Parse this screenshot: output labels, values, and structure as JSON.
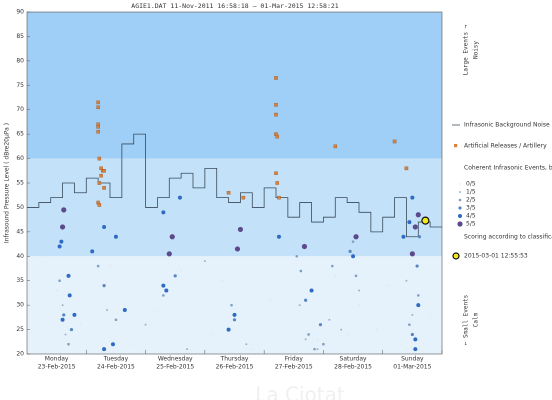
{
  "chart_data": {
    "type": "scatter",
    "title": "AGIE1.DAT   11-Nov-2011 16:58:18   –   01-Mar-2015 12:58:21",
    "y_label": "Infrasound Pressure Level   ( dBre20µPa )",
    "categories": [
      "Monday",
      "Tuesday",
      "Wednesday",
      "Thursday",
      "Friday",
      "Saturday",
      "Sunday"
    ],
    "dates": [
      "23-Feb-2015",
      "24-Feb-2015",
      "25-Feb-2015",
      "26-Feb-2015",
      "27-Feb-2015",
      "28-Feb-2015",
      "01-Mar-2015"
    ],
    "xlim": [
      0,
      7
    ],
    "ylim": [
      20,
      90
    ],
    "yticks": [
      20,
      25,
      30,
      35,
      40,
      45,
      50,
      55,
      60,
      65,
      70,
      75,
      80,
      85,
      90
    ],
    "zones": [
      {
        "from": 60,
        "to": 90,
        "color": "#9fcff6"
      },
      {
        "from": 40,
        "to": 60,
        "color": "#c3e2f9"
      },
      {
        "from": 20,
        "to": 40,
        "color": "#e5f1fb"
      }
    ],
    "zone_labels": [
      "Noisy",
      "Large Events →",
      "← Small Events",
      "Calm"
    ],
    "noise": {
      "name": "Infrasonic Background Noise",
      "color": "#3a4a5a",
      "x": [
        0,
        0.2,
        0.4,
        0.6,
        0.8,
        1.0,
        1.2,
        1.4,
        1.6,
        1.8,
        2.0,
        2.2,
        2.4,
        2.6,
        2.8,
        3.0,
        3.2,
        3.4,
        3.6,
        3.8,
        4.0,
        4.2,
        4.4,
        4.6,
        4.8,
        5.0,
        5.2,
        5.4,
        5.6,
        5.8,
        6.0,
        6.2,
        6.4,
        6.6,
        6.8
      ],
      "values": [
        50,
        51,
        52,
        55,
        53,
        56,
        55,
        52,
        63,
        65,
        50,
        52,
        56,
        57,
        54,
        58,
        52,
        51,
        53,
        50,
        54,
        52,
        48,
        51,
        47,
        48,
        52,
        51,
        49,
        45,
        48,
        52,
        44,
        47,
        46
      ]
    },
    "artillery": {
      "name": "Artificial Releases / Artillery",
      "color": "#d9823b",
      "x": [
        1.2,
        1.2,
        1.2,
        1.2,
        1.2,
        1.22,
        1.25,
        1.28,
        1.3,
        1.25,
        1.22,
        1.3,
        1.2,
        1.22,
        3.4,
        3.65,
        4.2,
        4.2,
        4.2,
        4.2,
        4.22,
        4.2,
        4.22,
        4.25,
        5.2,
        6.2,
        6.4
      ],
      "values": [
        71.5,
        70.5,
        67,
        66.5,
        65.5,
        60,
        58,
        57.5,
        57.5,
        56.5,
        55,
        54,
        51,
        50.5,
        53,
        52,
        76.5,
        71,
        69,
        65,
        64.5,
        57,
        55,
        52,
        62.5,
        63.5,
        58
      ]
    },
    "events_title": "Coherent Infrasonic Events, by Score:",
    "series": [
      {
        "name": "0/5",
        "color": "#dde6ee",
        "radius": 0.8,
        "x": [
          0.3,
          0.5,
          0.9,
          1.4,
          1.8,
          2.2,
          2.6,
          3.1,
          3.3,
          3.8,
          4.1,
          4.5,
          4.9,
          5.2,
          5.6,
          5.9,
          6.1,
          6.3,
          6.8,
          5.4
        ],
        "values": [
          40,
          33,
          26,
          38,
          22,
          29,
          37,
          24,
          35,
          21,
          31,
          27,
          23,
          36,
          30,
          25,
          34,
          22,
          28,
          24
        ]
      },
      {
        "name": "1/5",
        "color": "#9fb4c8",
        "radius": 1.0,
        "x": [
          0.6,
          0.65,
          1.1,
          1.35,
          2.0,
          2.7,
          3.0,
          3.7,
          4.6,
          4.7,
          4.9,
          5.1,
          5.3,
          5.6,
          6.4,
          6.5
        ],
        "values": [
          30,
          24,
          41,
          29,
          26,
          21,
          39,
          22,
          30,
          23,
          21,
          27,
          25,
          33,
          35,
          28
        ]
      },
      {
        "name": "2/5",
        "color": "#7f9fc0",
        "radius": 1.3,
        "x": [
          0.55,
          0.7,
          1.2,
          1.5,
          2.3,
          3.45,
          4.55,
          4.62,
          4.75,
          4.85,
          5.0,
          5.15,
          5.5,
          5.55,
          6.45,
          6.6
        ],
        "values": [
          35,
          22,
          38,
          27,
          32,
          30,
          40,
          37,
          24,
          21,
          22,
          38,
          43,
          36,
          26,
          32
        ]
      },
      {
        "name": "3/5",
        "color": "#5a86c0",
        "radius": 1.6,
        "x": [
          0.62,
          0.75,
          1.3,
          2.5,
          3.5,
          4.7,
          4.95,
          5.45,
          6.5,
          6.58,
          6.62
        ],
        "values": [
          28,
          25,
          34,
          36,
          27,
          31,
          26,
          41,
          24,
          38,
          44
        ]
      },
      {
        "name": "4/5",
        "color": "#2f6bc2",
        "radius": 2.0,
        "x": [
          0.55,
          0.58,
          0.7,
          0.72,
          1.1,
          1.3,
          2.3,
          2.58,
          2.3,
          2.35,
          3.4,
          3.5,
          4.25,
          5.5,
          6.35,
          6.45,
          6.5,
          6.6,
          6.55,
          6.55,
          0.6,
          0.8,
          1.3,
          1.45,
          1.65,
          1.5,
          4.8
        ],
        "values": [
          42,
          43,
          36,
          32,
          41,
          46,
          49,
          52,
          34,
          33,
          25,
          28,
          44,
          40,
          44,
          47,
          52,
          30,
          23,
          21,
          27,
          28,
          21,
          22,
          29,
          44,
          33
        ]
      },
      {
        "name": "5/5",
        "color": "#5d4a8c",
        "radius": 2.6,
        "x": [
          0.6,
          0.62,
          2.45,
          2.4,
          3.55,
          3.6,
          4.68,
          5.55,
          6.5,
          6.55,
          6.6
        ],
        "values": [
          46,
          49.5,
          44,
          40.5,
          41.5,
          45.5,
          42,
          44,
          40.5,
          46,
          48.5
        ]
      }
    ],
    "scoring_note": "Scoring according to classification bounds",
    "highlight": {
      "label": "2015-03-01 12:55:53",
      "x": 6.72,
      "value": 47.3,
      "color": "#f2ea1c"
    },
    "watermark": "La Ciotat"
  }
}
